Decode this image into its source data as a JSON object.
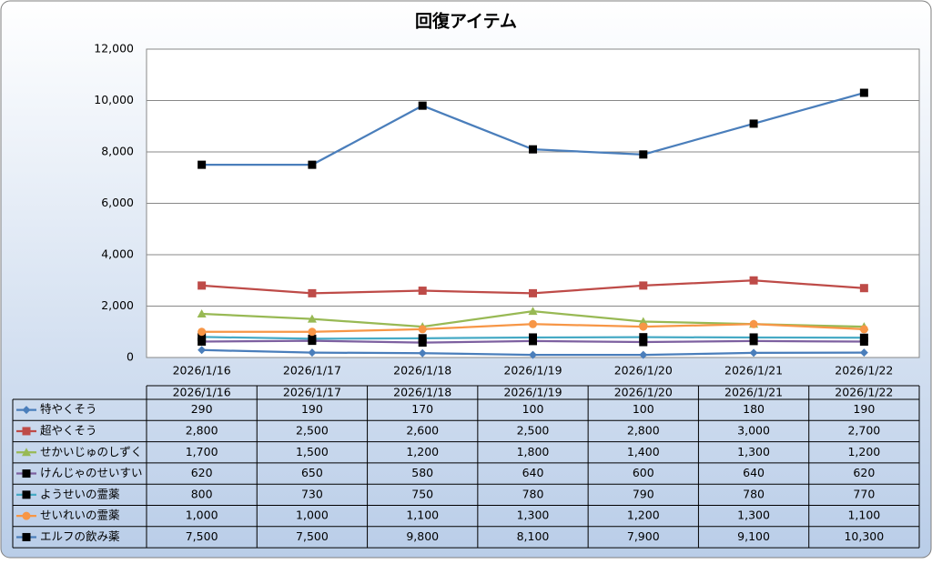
{
  "chart_data": {
    "type": "line",
    "title": "回復アイテム",
    "categories": [
      "2026/1/16",
      "2026/1/17",
      "2026/1/18",
      "2026/1/19",
      "2026/1/20",
      "2026/1/21",
      "2026/1/22"
    ],
    "ylim": [
      0,
      12000
    ],
    "yticks": [
      0,
      {
        "value": 2000,
        "label": "2,000"
      },
      {
        "value": 4000,
        "label": "4,000"
      },
      {
        "value": 6000,
        "label": "6,000"
      },
      {
        "value": 8000,
        "label": "8,000"
      },
      {
        "value": 10000,
        "label": "10,000"
      },
      {
        "value": 12000,
        "label": "12,000"
      }
    ],
    "grid": true,
    "data_table": true,
    "series": [
      {
        "name": "特やくそう",
        "color": "#4a7ebb",
        "marker": "diamond",
        "marker_color": "#4a7ebb",
        "values": [
          290,
          190,
          170,
          100,
          100,
          180,
          190
        ]
      },
      {
        "name": "超やくそう",
        "color": "#be4b48",
        "marker": "square",
        "marker_color": "#be4b48",
        "values": [
          2800,
          2500,
          2600,
          2500,
          2800,
          3000,
          2700
        ],
        "value_labels": [
          "2,800",
          "2,500",
          "2,600",
          "2,500",
          "2,800",
          "3,000",
          "2,700"
        ]
      },
      {
        "name": "せかいじゅのしずく",
        "color": "#98b954",
        "marker": "triangle",
        "marker_color": "#98b954",
        "values": [
          1700,
          1500,
          1200,
          1800,
          1400,
          1300,
          1200
        ],
        "value_labels": [
          "1,700",
          "1,500",
          "1,200",
          "1,800",
          "1,400",
          "1,300",
          "1,200"
        ]
      },
      {
        "name": "けんじゃのせいすい",
        "color": "#7d60a0",
        "marker": "square",
        "marker_color": "#000000",
        "values": [
          620,
          650,
          580,
          640,
          600,
          640,
          620
        ]
      },
      {
        "name": "ようせいの霊薬",
        "color": "#46aac5",
        "marker": "square",
        "marker_color": "#000000",
        "values": [
          800,
          730,
          750,
          780,
          790,
          780,
          770
        ]
      },
      {
        "name": "せいれいの霊薬",
        "color": "#f79646",
        "marker": "circle",
        "marker_color": "#f79646",
        "values": [
          1000,
          1000,
          1100,
          1300,
          1200,
          1300,
          1100
        ],
        "value_labels": [
          "1,000",
          "1,000",
          "1,100",
          "1,300",
          "1,200",
          "1,300",
          "1,100"
        ]
      },
      {
        "name": "エルフの飲み薬",
        "color": "#4a7ebb",
        "marker": "square",
        "marker_color": "#000000",
        "values": [
          7500,
          7500,
          9800,
          8100,
          7900,
          9100,
          10300
        ],
        "value_labels": [
          "7,500",
          "7,500",
          "9,800",
          "8,100",
          "7,900",
          "9,100",
          "10,300"
        ]
      }
    ]
  }
}
